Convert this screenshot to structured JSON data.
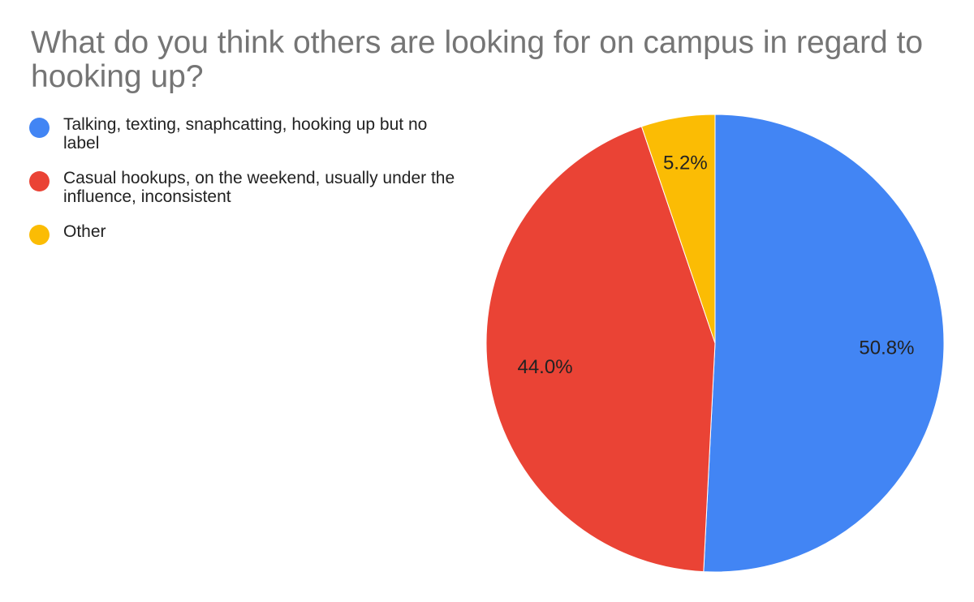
{
  "chart_data": {
    "type": "pie",
    "title": "What do you think others are looking for on campus in regard to hooking up?",
    "legend_position": "left",
    "slices": [
      {
        "name": "Talking, texting, snaphcatting, hooking up but no label",
        "value": 50.8,
        "label": "50.8%",
        "color": "#4285F4"
      },
      {
        "name": "Casual hookups, on the weekend, usually under the influence, inconsistent",
        "value": 44.0,
        "label": "44.0%",
        "color": "#EA4335"
      },
      {
        "name": "Other",
        "value": 5.2,
        "label": "5.2%",
        "color": "#FBBC04"
      }
    ]
  }
}
